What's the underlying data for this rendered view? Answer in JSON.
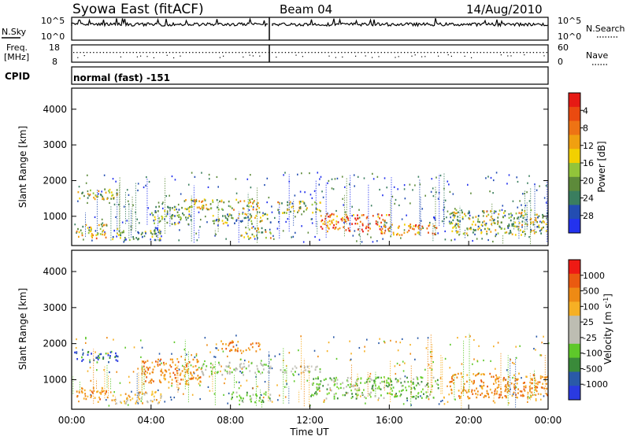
{
  "header": {
    "station": "Syowa East (fitACF)",
    "beam": "Beam 04",
    "date": "14/Aug/2010"
  },
  "noise_panel": {
    "left_label": "N.Sky",
    "right_label": "N.Search",
    "left_ticks": [
      "10^5",
      "10^0"
    ],
    "right_ticks": [
      "10^5",
      "10^0"
    ]
  },
  "freq_panel": {
    "left_label_1": "Freq.",
    "left_label_2": "[MHz]",
    "left_ticks": [
      "18",
      "8"
    ],
    "right_label": "Nave",
    "right_ticks": [
      "60",
      "0"
    ]
  },
  "cpid": {
    "label": "CPID",
    "value": "normal (fast) -151"
  },
  "x_axis": {
    "label": "Time UT",
    "ticks": [
      "00:00",
      "04:00",
      "08:00",
      "12:00",
      "16:00",
      "20:00",
      "00:00"
    ]
  },
  "chart_data": [
    {
      "type": "heatmap",
      "title": "",
      "xlabel": "Time UT",
      "ylabel": "Slant Range [km]",
      "x_range_hours": [
        0,
        24
      ],
      "ylim": [
        180,
        4590
      ],
      "y_ticks": [
        "1000",
        "2000",
        "3000",
        "4000"
      ],
      "colorbar": {
        "label": "Power [dB]",
        "range": [
          0,
          32
        ],
        "ticks": [
          "4",
          "8",
          "12",
          "16",
          "20",
          "24",
          "28"
        ],
        "colors": [
          "#2332ee",
          "#234db2",
          "#3a7e5f",
          "#5d8a3a",
          "#92c43a",
          "#f2d000",
          "#f0a010",
          "#ee7314",
          "#ea4a10",
          "#e61a14"
        ]
      },
      "echo_regions": [
        {
          "t": [
            0.1,
            2.3
          ],
          "r": [
            1500,
            1800
          ],
          "level": 0.45
        },
        {
          "t": [
            0.2,
            1.8
          ],
          "r": [
            400,
            800
          ],
          "level": 0.55
        },
        {
          "t": [
            2.0,
            4.5
          ],
          "r": [
            350,
            700
          ],
          "level": 0.3
        },
        {
          "t": [
            4.0,
            6.0
          ],
          "r": [
            800,
            1300
          ],
          "level": 0.35
        },
        {
          "t": [
            5.5,
            9.5
          ],
          "r": [
            1200,
            1500
          ],
          "level": 0.55
        },
        {
          "t": [
            7.0,
            10.0
          ],
          "r": [
            800,
            1100
          ],
          "level": 0.4
        },
        {
          "t": [
            8.5,
            10.0
          ],
          "r": [
            400,
            700
          ],
          "level": 0.45
        },
        {
          "t": [
            10.3,
            12.5
          ],
          "r": [
            1100,
            1450
          ],
          "level": 0.45
        },
        {
          "t": [
            12.5,
            16.0
          ],
          "r": [
            600,
            1100
          ],
          "level": 0.8
        },
        {
          "t": [
            15.5,
            18.5
          ],
          "r": [
            500,
            800
          ],
          "level": 0.65
        },
        {
          "t": [
            19.0,
            24.0
          ],
          "r": [
            500,
            1200
          ],
          "level": 0.45
        }
      ]
    },
    {
      "type": "heatmap",
      "title": "",
      "xlabel": "Time UT",
      "ylabel": "Slant Range [km]",
      "x_range_hours": [
        0,
        24
      ],
      "ylim": [
        180,
        4590
      ],
      "y_ticks": [
        "1000",
        "2000",
        "3000",
        "4000"
      ],
      "colorbar": {
        "label": "Velocity [m s^-1]",
        "range": [
          -1200,
          1200
        ],
        "ticks": [
          "1000",
          "500",
          "100",
          "25",
          "-25",
          "-100",
          "-500",
          "-1000"
        ],
        "colors": [
          "#ee1a14",
          "#ea5a10",
          "#ee8a14",
          "#f6b024",
          "#bdbdb2",
          "#bdbdb2",
          "#5ec82a",
          "#3a8a3a",
          "#2a5aa8",
          "#2a3ae0"
        ]
      },
      "echo_regions": [
        {
          "t": [
            0.1,
            2.3
          ],
          "r": [
            1500,
            1800
          ],
          "v": "blue"
        },
        {
          "t": [
            0.2,
            1.8
          ],
          "r": [
            400,
            800
          ],
          "v": "orange"
        },
        {
          "t": [
            2.0,
            4.5
          ],
          "r": [
            350,
            700
          ],
          "v": "yellow"
        },
        {
          "t": [
            3.5,
            6.5
          ],
          "r": [
            900,
            1600
          ],
          "v": "orange"
        },
        {
          "t": [
            6.5,
            10.0
          ],
          "r": [
            1150,
            1500
          ],
          "v": "gray"
        },
        {
          "t": [
            7.5,
            9.5
          ],
          "r": [
            1800,
            2100
          ],
          "v": "orange"
        },
        {
          "t": [
            8.0,
            10.0
          ],
          "r": [
            400,
            700
          ],
          "v": "green"
        },
        {
          "t": [
            10.3,
            12.5
          ],
          "r": [
            1200,
            1400
          ],
          "v": "gray"
        },
        {
          "t": [
            12.0,
            18.5
          ],
          "r": [
            500,
            1100
          ],
          "v": "green"
        },
        {
          "t": [
            19.0,
            24.0
          ],
          "r": [
            500,
            1200
          ],
          "v": "orange"
        }
      ]
    }
  ]
}
